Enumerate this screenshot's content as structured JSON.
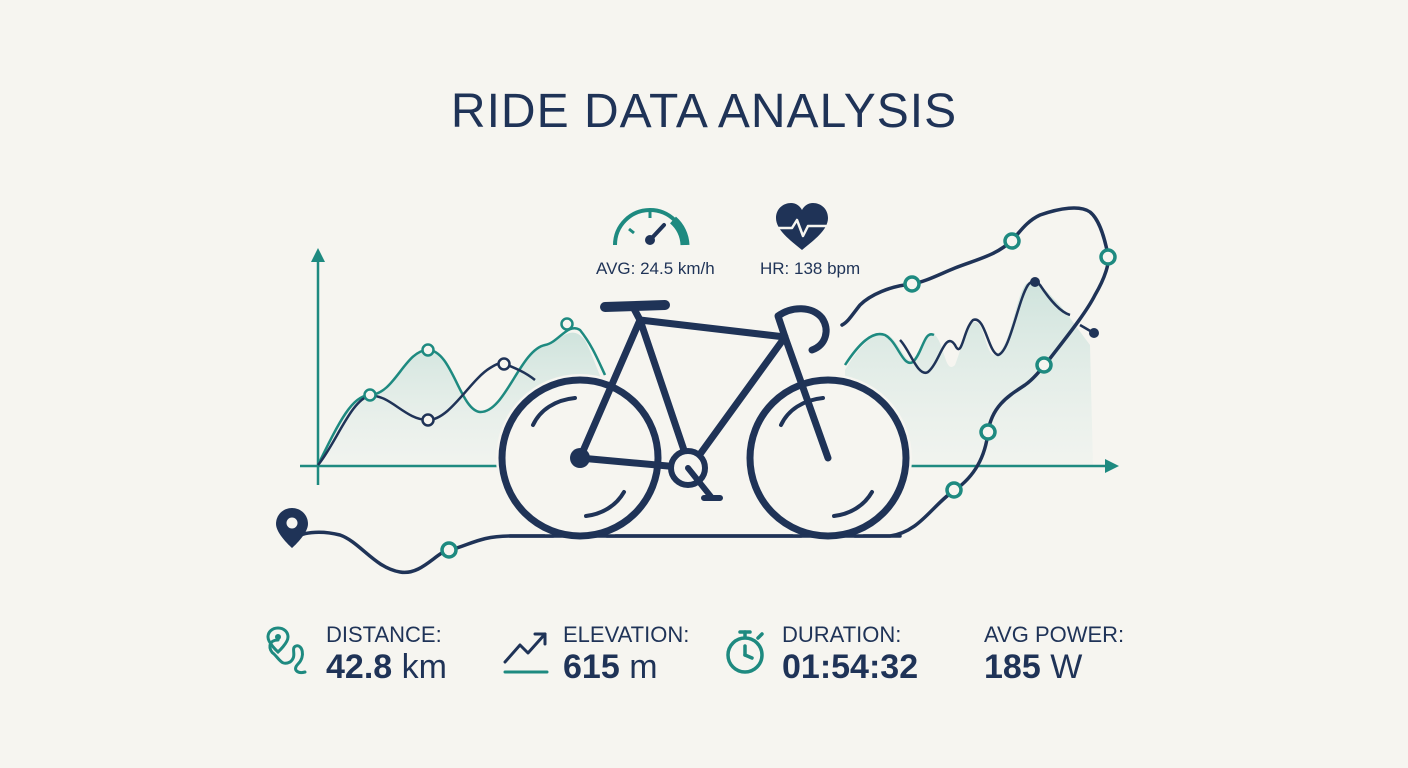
{
  "header": {
    "title": "RIDE DATA ANALYSIS"
  },
  "live_metrics": {
    "speed": {
      "label": "AVG: 24.5 km/h",
      "icon": "speedometer-icon"
    },
    "heart_rate": {
      "label": "HR: 138 bpm",
      "icon": "heart-rate-icon"
    }
  },
  "stats": [
    {
      "key": "distance",
      "label": "DISTANCE:",
      "value": "42.8",
      "unit": "km",
      "icon": "route-icon"
    },
    {
      "key": "elevation",
      "label": "ELEVATION:",
      "value": "615",
      "unit": "m",
      "icon": "elevation-trend-icon"
    },
    {
      "key": "duration",
      "label": "DURATION:",
      "value": "01:54:32",
      "unit": "",
      "icon": "stopwatch-icon"
    },
    {
      "key": "avg_power",
      "label": "AVG POWER:",
      "value": "185",
      "unit": "W",
      "icon": ""
    }
  ],
  "colors": {
    "navy": "#1f3357",
    "teal": "#1e8a80",
    "fill": "#dbe9e4",
    "background": "#f6f5f0"
  }
}
